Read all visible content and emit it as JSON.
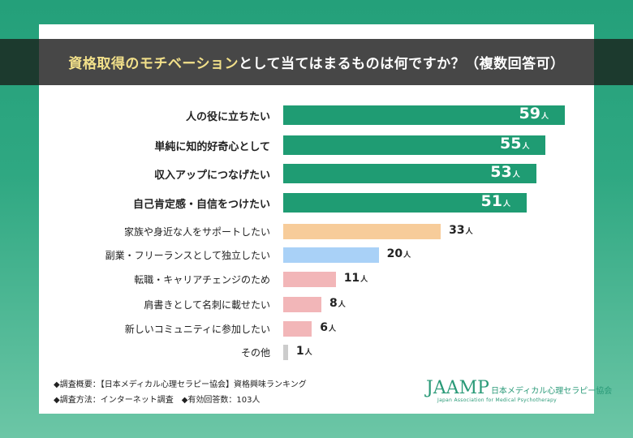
{
  "title": {
    "highlight": "資格取得のモチベーション",
    "rest": "として当てはまるものは何ですか？（複数回答可）"
  },
  "chart_data": {
    "type": "bar",
    "orientation": "horizontal",
    "unit": "人",
    "categories": [
      "人の役に立ちたい",
      "単純に知的好奇心として",
      "収入アップにつなげたい",
      "自己肯定感・自信をつけたい",
      "家族や身近な人をサポートしたい",
      "副業・フリーランスとして独立したい",
      "転職・キャリアチェンジのため",
      "肩書きとして名刺に載せたい",
      "新しいコミュニティに参加したい",
      "その他"
    ],
    "values": [
      59,
      55,
      53,
      51,
      33,
      20,
      11,
      8,
      6,
      1
    ],
    "colors": [
      "#1f9c73",
      "#1f9c73",
      "#1f9c73",
      "#1f9c73",
      "#f7cc9a",
      "#a9d1f7",
      "#f2b6b8",
      "#f2b6b8",
      "#f2b6b8",
      "#cccccc"
    ],
    "grid": false
  },
  "footer": {
    "line1": "◆調査概要：【日本メディカル心理セラピー協会】資格興味ランキング",
    "line2": "◆調査方法：インターネット調査　◆有効回答数：103人"
  },
  "logo": {
    "mark": "JAAMP",
    "jp": "日本メディカル心理セラピー協会",
    "en": "Japan Association for Medical Psychotherapy"
  }
}
